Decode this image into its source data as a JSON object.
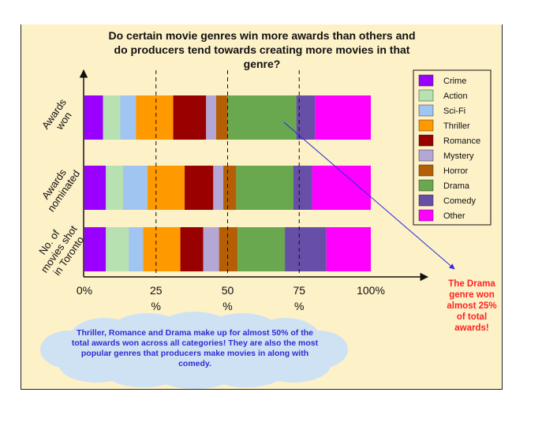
{
  "chart_data": {
    "type": "bar",
    "orientation": "horizontal",
    "stacked": true,
    "normalized": true,
    "title": "Do certain movie genres win more awards than others and do producers tend towards creating more movies in that genre?",
    "title_lines": [
      "Do certain movie genres win more awards than others and",
      "do producers tend towards creating more movies in that",
      "genre?"
    ],
    "categories": [
      "Awards won",
      "Awards nominated",
      "No. of movies shot in Toronto"
    ],
    "category_label_lines": [
      [
        "Awards",
        "won"
      ],
      [
        "Awards",
        "nominated"
      ],
      [
        "No. of",
        "movies shot",
        "in Toronto"
      ]
    ],
    "x_ticks": [
      {
        "value": 0,
        "lines": [
          "0%"
        ]
      },
      {
        "value": 25,
        "lines": [
          "25",
          "%"
        ]
      },
      {
        "value": 50,
        "lines": [
          "50",
          "%"
        ]
      },
      {
        "value": 75,
        "lines": [
          "75",
          "%"
        ]
      },
      {
        "value": 100,
        "lines": [
          "100%"
        ]
      }
    ],
    "xlim": [
      0,
      100
    ],
    "reference_lines": [
      25,
      50,
      75
    ],
    "legend_position": "right",
    "series": [
      {
        "name": "Crime",
        "color": "#9900ff",
        "values": [
          6.5,
          7.5,
          7.5
        ]
      },
      {
        "name": "Action",
        "color": "#b7e1b1",
        "values": [
          6,
          6,
          8
        ]
      },
      {
        "name": "Sci-Fi",
        "color": "#9fc5f0",
        "values": [
          5.5,
          8.5,
          5
        ]
      },
      {
        "name": "Thriller",
        "color": "#ff9900",
        "values": [
          13,
          13,
          13
        ]
      },
      {
        "name": "Romance",
        "color": "#990000",
        "values": [
          11.5,
          10,
          8
        ]
      },
      {
        "name": "Mystery",
        "color": "#b4a7d6",
        "values": [
          3.5,
          3.5,
          5.5
        ]
      },
      {
        "name": "Horror",
        "color": "#b45f06",
        "values": [
          4,
          4.5,
          6.5
        ]
      },
      {
        "name": "Drama",
        "color": "#6aa84f",
        "values": [
          24,
          20,
          16.5
        ]
      },
      {
        "name": "Comedy",
        "color": "#674ea7",
        "values": [
          6.5,
          6.5,
          14.5
        ]
      },
      {
        "name": "Other",
        "color": "#ff00ff",
        "values": [
          19.5,
          20.5,
          15.5
        ]
      }
    ],
    "annotations": {
      "drama_note_lines": [
        "The Drama",
        "genre won",
        "almost 25%",
        "of total",
        "awards!"
      ],
      "drama_note_color": "#ff2222",
      "arrow_color": "#2a2adf",
      "cloud_text_lines": [
        "Thriller, Romance and Drama make up for almost 50% of the",
        "total awards won across all categories! They are also the most",
        "popular genres that producers make movies in along with",
        "comedy."
      ],
      "cloud_color": "#cfe2f3",
      "cloud_text_color": "#2d2bd6"
    }
  }
}
